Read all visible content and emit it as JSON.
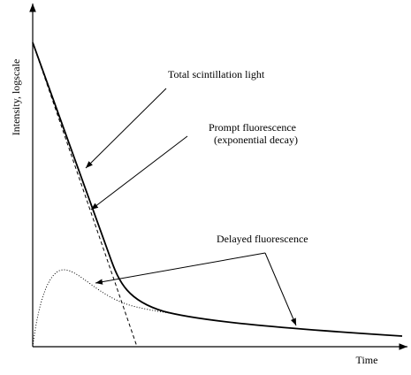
{
  "axes": {
    "y_label": "Intensity, logscale",
    "x_label": "Time"
  },
  "annotations": {
    "total": "Total scintillation light",
    "prompt": "Prompt fluorescence",
    "prompt_note": "(exponential decay)",
    "delayed": "Delayed fluorescence"
  }
}
